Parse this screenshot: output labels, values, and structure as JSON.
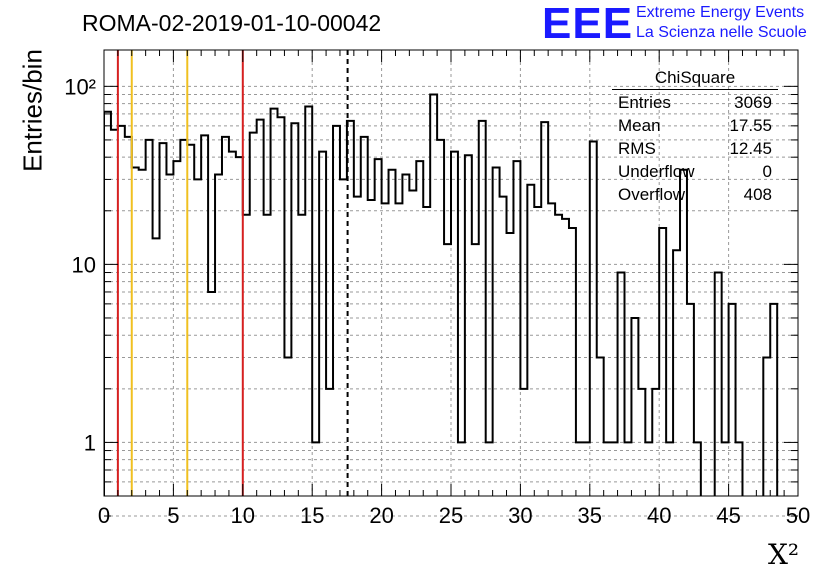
{
  "title": "ROMA-02-2019-01-10-00042",
  "logo": {
    "mark": "EEE",
    "line1": "Extreme Energy Events",
    "line2": "La Scienza nelle Scuole",
    "color": "#1a1aff"
  },
  "stats_box": {
    "name": "ChiSquare",
    "rows": [
      {
        "label": "Entries",
        "value": "3069"
      },
      {
        "label": "Mean",
        "value": "17.55"
      },
      {
        "label": "RMS",
        "value": "12.45"
      },
      {
        "label": "Underflow",
        "value": "0"
      },
      {
        "label": "Overflow",
        "value": "408"
      }
    ]
  },
  "chart_data": {
    "type": "histogram",
    "ylabel": "Entries/bin",
    "xlabel": "X²",
    "xlim": [
      0,
      50
    ],
    "ylim": [
      0.5,
      160
    ],
    "ylog": true,
    "bin_width": 0.5,
    "x_ticks": [
      "0",
      "5",
      "10",
      "15",
      "20",
      "25",
      "30",
      "35",
      "40",
      "45",
      "50"
    ],
    "y_ticks": [
      "1",
      "10",
      "10²"
    ],
    "grid": true,
    "values": [
      72,
      57,
      60,
      52,
      35,
      34,
      50,
      14,
      48,
      32,
      38,
      50,
      47,
      30,
      53,
      7,
      32,
      52,
      43,
      40,
      19,
      55,
      65,
      19,
      75,
      67,
      3,
      62,
      19,
      77,
      1,
      43,
      2,
      60,
      30,
      64,
      24,
      52,
      23,
      39,
      22,
      34,
      22,
      32,
      26,
      38,
      21,
      90,
      50,
      13,
      43,
      1,
      41,
      13,
      64,
      1,
      35,
      24,
      15,
      38,
      2,
      28,
      21,
      63,
      22,
      19,
      18,
      16,
      1,
      1,
      49,
      3,
      1,
      1,
      9,
      1,
      5,
      2,
      1,
      2,
      16,
      1,
      12,
      34,
      6,
      1,
      0,
      0,
      9,
      1,
      6,
      1,
      0,
      0,
      0,
      3,
      6,
      0,
      0,
      0
    ],
    "vertical_lines": [
      {
        "x": 1,
        "color": "#d62020",
        "style": "solid"
      },
      {
        "x": 2,
        "color": "#f0c020",
        "style": "solid"
      },
      {
        "x": 6,
        "color": "#f0c020",
        "style": "solid"
      },
      {
        "x": 10,
        "color": "#d62020",
        "style": "solid"
      },
      {
        "x": 17.55,
        "color": "#000000",
        "style": "dashed"
      }
    ]
  }
}
